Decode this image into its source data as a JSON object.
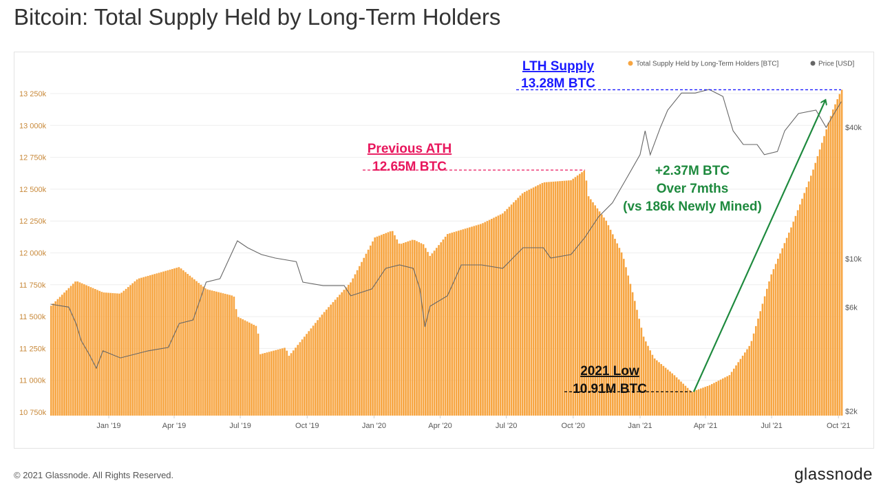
{
  "title": "Bitcoin: Total Supply Held by Long-Term Holders",
  "footer": "© 2021 Glassnode. All Rights Reserved.",
  "logo": "glassnode",
  "chart_data": {
    "type": "bar+line",
    "title": "Bitcoin: Total Supply Held by Long-Term Holders",
    "legend_position": "top-right",
    "grid": true,
    "colors": {
      "supply": "#f7a541",
      "price": "#666666",
      "lth_line": "#1a1aff",
      "prev_ath": "#e8175d",
      "growth": "#1e8a3e",
      "low": "#000000"
    },
    "x_ticks": [
      "Jan '19",
      "Apr '19",
      "Jul '19",
      "Oct '19",
      "Jan '20",
      "Apr '20",
      "Jul '20",
      "Oct '20",
      "Jan '21",
      "Apr '21",
      "Jul '21",
      "Oct '21"
    ],
    "y_left": {
      "ticks": [
        "10 750k",
        "11 000k",
        "11 250k",
        "11 500k",
        "11 750k",
        "12 000k",
        "12 250k",
        "12 500k",
        "12 750k",
        "13 000k",
        "13 250k"
      ],
      "range": [
        10750,
        13330
      ],
      "unit": "k BTC"
    },
    "y_right": {
      "ticks": [
        "$2k",
        "$6k",
        "$10k",
        "$40k"
      ],
      "scale": "log",
      "range": [
        2000,
        60000
      ]
    },
    "series": [
      {
        "name": "Total Supply Held by Long-Term Holders [BTC]",
        "type": "bar",
        "unit": "k BTC",
        "points": [
          [
            "2018-10-13",
            11582
          ],
          [
            "2018-11-17",
            11781
          ],
          [
            "2018-12-24",
            11690
          ],
          [
            "2019-01-17",
            11680
          ],
          [
            "2019-02-10",
            11797
          ],
          [
            "2019-04-08",
            11889
          ],
          [
            "2019-05-15",
            11716
          ],
          [
            "2019-06-22",
            11662
          ],
          [
            "2019-06-27",
            11500
          ],
          [
            "2019-07-25",
            11420
          ],
          [
            "2019-07-27",
            11203
          ],
          [
            "2019-09-01",
            11257
          ],
          [
            "2019-09-06",
            11192
          ],
          [
            "2019-10-23",
            11527
          ],
          [
            "2019-11-30",
            11770
          ],
          [
            "2020-01-02",
            12121
          ],
          [
            "2020-01-26",
            12175
          ],
          [
            "2020-02-05",
            12067
          ],
          [
            "2020-02-24",
            12105
          ],
          [
            "2020-03-09",
            12067
          ],
          [
            "2020-03-18",
            11975
          ],
          [
            "2020-04-11",
            12148
          ],
          [
            "2020-05-28",
            12229
          ],
          [
            "2020-06-26",
            12310
          ],
          [
            "2020-07-24",
            12472
          ],
          [
            "2020-08-21",
            12553
          ],
          [
            "2020-09-28",
            12570
          ],
          [
            "2020-10-17",
            12650
          ],
          [
            "2020-10-22",
            12445
          ],
          [
            "2020-11-15",
            12256
          ],
          [
            "2020-12-08",
            11986
          ],
          [
            "2020-12-23",
            11662
          ],
          [
            "2021-01-06",
            11338
          ],
          [
            "2021-01-20",
            11176
          ],
          [
            "2021-02-17",
            11041
          ],
          [
            "2021-03-13",
            10910
          ],
          [
            "2021-04-06",
            10960
          ],
          [
            "2021-05-04",
            11041
          ],
          [
            "2021-06-02",
            11284
          ],
          [
            "2021-06-30",
            11824
          ],
          [
            "2021-07-28",
            12202
          ],
          [
            "2021-08-26",
            12634
          ],
          [
            "2021-09-23",
            13120
          ],
          [
            "2021-10-05",
            13280
          ]
        ]
      },
      {
        "name": "Price [USD]",
        "type": "line",
        "unit": "USD",
        "points": [
          [
            "2018-10-13",
            6190
          ],
          [
            "2018-11-07",
            6000
          ],
          [
            "2018-11-17",
            5050
          ],
          [
            "2018-11-24",
            4220
          ],
          [
            "2018-12-05",
            3650
          ],
          [
            "2018-12-15",
            3150
          ],
          [
            "2018-12-24",
            3780
          ],
          [
            "2019-01-17",
            3510
          ],
          [
            "2019-02-24",
            3780
          ],
          [
            "2019-03-24",
            3920
          ],
          [
            "2019-04-08",
            5050
          ],
          [
            "2019-04-27",
            5240
          ],
          [
            "2019-05-15",
            7810
          ],
          [
            "2019-06-03",
            8100
          ],
          [
            "2019-06-27",
            12080
          ],
          [
            "2019-07-11",
            11230
          ],
          [
            "2019-07-30",
            10450
          ],
          [
            "2019-08-18",
            10070
          ],
          [
            "2019-09-16",
            9700
          ],
          [
            "2019-09-25",
            7810
          ],
          [
            "2019-10-23",
            7530
          ],
          [
            "2019-11-21",
            7530
          ],
          [
            "2019-11-30",
            6760
          ],
          [
            "2019-12-29",
            7270
          ],
          [
            "2020-01-17",
            9030
          ],
          [
            "2020-02-05",
            9370
          ],
          [
            "2020-02-24",
            9030
          ],
          [
            "2020-03-04",
            7270
          ],
          [
            "2020-03-11",
            4870
          ],
          [
            "2020-03-18",
            6060
          ],
          [
            "2020-04-11",
            6760
          ],
          [
            "2020-04-30",
            9370
          ],
          [
            "2020-05-28",
            9370
          ],
          [
            "2020-06-26",
            9030
          ],
          [
            "2020-07-24",
            11230
          ],
          [
            "2020-08-21",
            11230
          ],
          [
            "2020-08-31",
            10070
          ],
          [
            "2020-09-28",
            10450
          ],
          [
            "2020-10-17",
            12520
          ],
          [
            "2020-11-05",
            15580
          ],
          [
            "2020-11-24",
            18030
          ],
          [
            "2020-12-13",
            23240
          ],
          [
            "2021-01-01",
            30000
          ],
          [
            "2021-01-08",
            38600
          ],
          [
            "2021-01-15",
            29960
          ],
          [
            "2021-01-29",
            40000
          ],
          [
            "2021-02-08",
            48000
          ],
          [
            "2021-02-27",
            57500
          ],
          [
            "2021-03-18",
            57500
          ],
          [
            "2021-04-06",
            59700
          ],
          [
            "2021-04-25",
            55500
          ],
          [
            "2021-05-09",
            38600
          ],
          [
            "2021-05-23",
            33400
          ],
          [
            "2021-06-11",
            33400
          ],
          [
            "2021-06-21",
            30000
          ],
          [
            "2021-07-09",
            31000
          ],
          [
            "2021-07-19",
            38600
          ],
          [
            "2021-08-07",
            46300
          ],
          [
            "2021-08-31",
            48000
          ],
          [
            "2021-09-14",
            40000
          ],
          [
            "2021-09-25",
            46300
          ],
          [
            "2021-10-05",
            52500
          ]
        ]
      }
    ],
    "annotations": {
      "lth": {
        "label": "LTH Supply",
        "value": "13.28M BTC",
        "level": 13280
      },
      "prev_ath": {
        "label": "Previous ATH",
        "value": "12.65M BTC",
        "level": 12650
      },
      "growth": {
        "line1": "+2.37M BTC",
        "line2": "Over 7mths",
        "line3": "(vs 186k Newly Mined)"
      },
      "low": {
        "label": "2021 Low",
        "value": "10.91M BTC",
        "level": 10910,
        "date": "2021-03-13"
      }
    }
  }
}
